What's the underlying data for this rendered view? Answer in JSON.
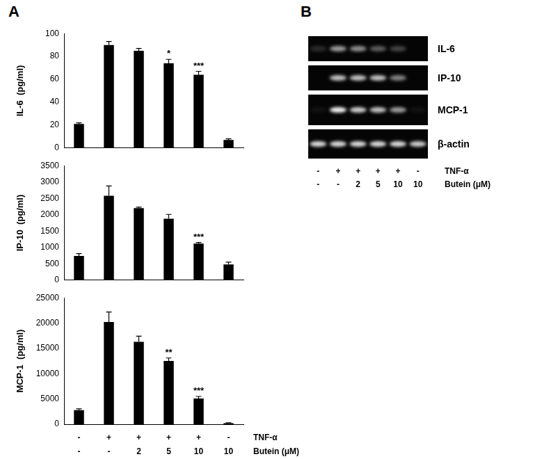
{
  "panel_labels": [
    "A",
    "B"
  ],
  "chart_data": [
    {
      "type": "bar",
      "ylabel": "IL-6  (pg/ml)",
      "categories": [
        null,
        null,
        null,
        null,
        null,
        null
      ],
      "values": [
        21,
        90,
        85,
        74,
        64,
        7
      ],
      "errors": [
        1,
        3,
        2,
        3.5,
        3,
        1
      ],
      "significance": [
        null,
        null,
        null,
        "*",
        "***",
        null
      ],
      "color": "#000000",
      "ylim": [
        0,
        100
      ],
      "yticks": [
        0,
        20,
        40,
        60,
        80,
        100
      ],
      "grid": false,
      "tick_labels": "y"
    },
    {
      "type": "bar",
      "ylabel": "IP-10  (pg/ml)",
      "categories": [
        null,
        null,
        null,
        null,
        null,
        null
      ],
      "values": [
        740,
        2580,
        2200,
        1880,
        1120,
        480
      ],
      "errors": [
        70,
        300,
        30,
        130,
        30,
        70
      ],
      "significance": [
        null,
        null,
        null,
        null,
        "***",
        null
      ],
      "color": "#000000",
      "ylim": [
        0,
        3500
      ],
      "yticks": [
        0,
        500,
        1000,
        1500,
        2000,
        2500,
        3000,
        3500
      ],
      "grid": false,
      "tick_labels": "y"
    },
    {
      "type": "bar",
      "ylabel": "MCP-1  (pg/ml)",
      "categories": [
        [
          "-",
          "-"
        ],
        [
          "+",
          "-"
        ],
        [
          "+",
          "2"
        ],
        [
          "+",
          "5"
        ],
        [
          "+",
          "10"
        ],
        [
          "-",
          "10"
        ]
      ],
      "row_labels": [
        "TNF-α",
        "Butein (μM)"
      ],
      "values": [
        2800,
        20200,
        16300,
        12500,
        5100,
        200
      ],
      "errors": [
        250,
        2000,
        1100,
        600,
        400,
        100
      ],
      "significance": [
        null,
        null,
        null,
        "**",
        "***",
        null
      ],
      "color": "#000000",
      "ylim": [
        0,
        25000
      ],
      "yticks": [
        0,
        5000,
        10000,
        15000,
        20000,
        25000
      ],
      "grid": false
    }
  ],
  "gel": {
    "bands": [
      {
        "label": "IL-6",
        "intensity": [
          0.15,
          0.6,
          0.55,
          0.35,
          0.25,
          0
        ]
      },
      {
        "label": "IP-10",
        "intensity": [
          0,
          0.75,
          0.75,
          0.75,
          0.5,
          0
        ]
      },
      {
        "label": "MCP-1",
        "intensity": [
          0.05,
          0.95,
          0.8,
          0.75,
          0.6,
          0.05
        ]
      },
      {
        "label": "β-actin",
        "intensity": [
          0.85,
          0.85,
          0.85,
          0.85,
          0.85,
          0.8
        ]
      }
    ],
    "lane_rows": [
      {
        "label": "TNF-α",
        "values": [
          "-",
          "+",
          "+",
          "+",
          "+",
          "-"
        ]
      },
      {
        "label": "Butein (μM)",
        "values": [
          "-",
          "-",
          "2",
          "5",
          "10",
          "10"
        ]
      }
    ]
  }
}
